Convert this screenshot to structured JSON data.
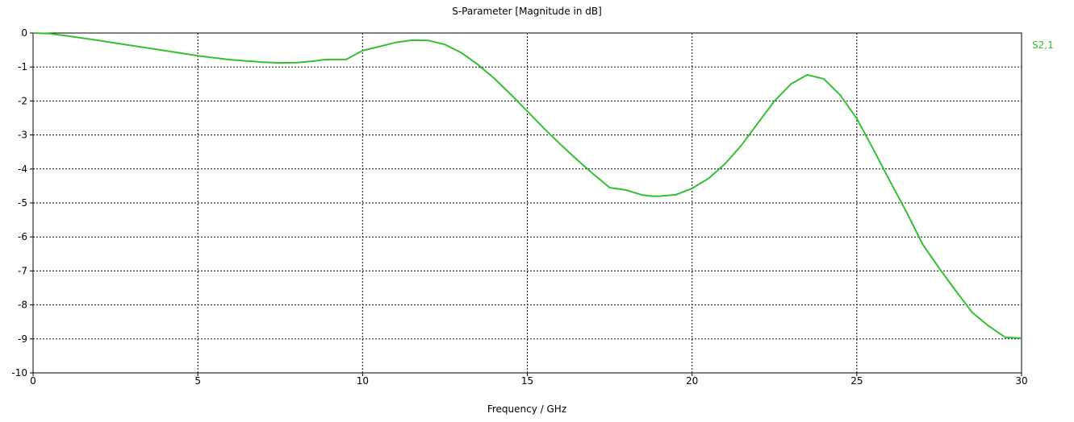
{
  "chart_data": {
    "type": "line",
    "title": "S-Parameter [Magnitude in dB]",
    "xlabel": "Frequency / GHz",
    "ylabel": "",
    "xlim": [
      0,
      30
    ],
    "ylim": [
      -10,
      0
    ],
    "x_ticks": [
      0,
      5,
      10,
      15,
      20,
      25,
      30
    ],
    "y_ticks": [
      0,
      -1,
      -2,
      -3,
      -4,
      -5,
      -6,
      -7,
      -8,
      -9,
      -10
    ],
    "grid": true,
    "legend_position": "top-right",
    "series": [
      {
        "name": "S2,1",
        "color": "#33c033",
        "x": [
          0,
          0.5,
          1,
          2,
          3,
          4,
          5,
          6,
          7,
          7.5,
          8,
          8.5,
          8.8,
          9,
          9.5,
          10,
          10.5,
          11,
          11.5,
          12,
          12.5,
          13,
          13.5,
          14,
          14.5,
          15,
          15.5,
          16,
          16.5,
          17,
          17.5,
          18,
          18.5,
          18.8,
          19,
          19.5,
          20,
          20.5,
          21,
          21.5,
          22,
          22.5,
          23,
          23.5,
          24,
          24.5,
          25,
          25.5,
          26,
          26.5,
          27,
          27.5,
          28,
          28.5,
          29,
          29.5,
          30
        ],
        "y": [
          0,
          -0.02,
          -0.08,
          -0.22,
          -0.37,
          -0.52,
          -0.67,
          -0.79,
          -0.86,
          -0.88,
          -0.87,
          -0.83,
          -0.79,
          -0.78,
          -0.78,
          -0.52,
          -0.4,
          -0.28,
          -0.21,
          -0.22,
          -0.34,
          -0.58,
          -0.93,
          -1.34,
          -1.81,
          -2.3,
          -2.8,
          -3.27,
          -3.72,
          -4.15,
          -4.55,
          -4.62,
          -4.77,
          -4.8,
          -4.8,
          -4.76,
          -4.57,
          -4.28,
          -3.85,
          -3.3,
          -2.65,
          -2.0,
          -1.5,
          -1.23,
          -1.35,
          -1.83,
          -2.52,
          -3.42,
          -4.35,
          -5.25,
          -6.22,
          -6.92,
          -7.58,
          -8.22,
          -8.62,
          -8.95,
          -8.98
        ]
      }
    ]
  }
}
